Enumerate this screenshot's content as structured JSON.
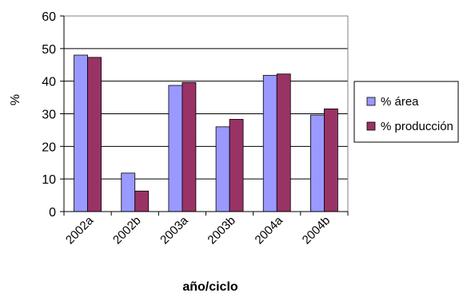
{
  "chart_data": {
    "type": "bar",
    "categories": [
      "2002a",
      "2002b",
      "2003a",
      "2003b",
      "2004a",
      "2004b"
    ],
    "series": [
      {
        "name": "% área",
        "values": [
          48,
          11.8,
          38.7,
          26,
          41.8,
          29.6
        ],
        "color": "#9999ff"
      },
      {
        "name": "% producción",
        "values": [
          47.3,
          6.3,
          39.6,
          28.3,
          42.2,
          31.5
        ],
        "color": "#993366"
      }
    ],
    "ylim": [
      0,
      60
    ],
    "yticks": [
      0,
      10,
      20,
      30,
      40,
      50,
      60
    ],
    "xlabel": "año/ciclo",
    "ylabel": "%",
    "grid": true,
    "legend_position": "right"
  }
}
